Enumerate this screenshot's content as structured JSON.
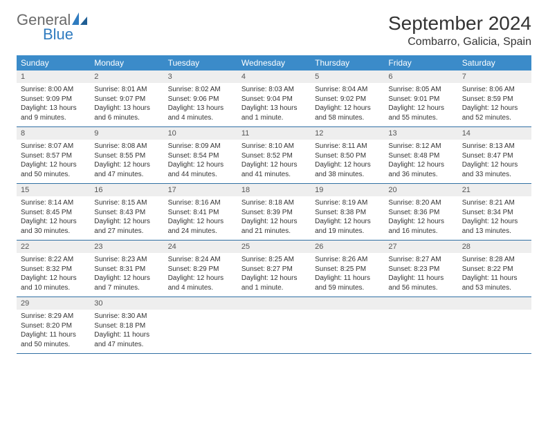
{
  "logo": {
    "general": "General",
    "blue": "Blue"
  },
  "header": {
    "month_title": "September 2024",
    "location": "Combarro, Galicia, Spain"
  },
  "colors": {
    "header_bg": "#3b8bc9",
    "header_text": "#ffffff",
    "daynum_bg": "#eeeeee",
    "row_border": "#2f6fa3",
    "logo_gray": "#6a6a6a",
    "logo_blue": "#2f7bbf",
    "text": "#333333",
    "background": "#ffffff"
  },
  "days_of_week": [
    "Sunday",
    "Monday",
    "Tuesday",
    "Wednesday",
    "Thursday",
    "Friday",
    "Saturday"
  ],
  "weeks": [
    [
      {
        "n": "1",
        "sunrise": "Sunrise: 8:00 AM",
        "sunset": "Sunset: 9:09 PM",
        "daylight": "Daylight: 13 hours and 9 minutes."
      },
      {
        "n": "2",
        "sunrise": "Sunrise: 8:01 AM",
        "sunset": "Sunset: 9:07 PM",
        "daylight": "Daylight: 13 hours and 6 minutes."
      },
      {
        "n": "3",
        "sunrise": "Sunrise: 8:02 AM",
        "sunset": "Sunset: 9:06 PM",
        "daylight": "Daylight: 13 hours and 4 minutes."
      },
      {
        "n": "4",
        "sunrise": "Sunrise: 8:03 AM",
        "sunset": "Sunset: 9:04 PM",
        "daylight": "Daylight: 13 hours and 1 minute."
      },
      {
        "n": "5",
        "sunrise": "Sunrise: 8:04 AM",
        "sunset": "Sunset: 9:02 PM",
        "daylight": "Daylight: 12 hours and 58 minutes."
      },
      {
        "n": "6",
        "sunrise": "Sunrise: 8:05 AM",
        "sunset": "Sunset: 9:01 PM",
        "daylight": "Daylight: 12 hours and 55 minutes."
      },
      {
        "n": "7",
        "sunrise": "Sunrise: 8:06 AM",
        "sunset": "Sunset: 8:59 PM",
        "daylight": "Daylight: 12 hours and 52 minutes."
      }
    ],
    [
      {
        "n": "8",
        "sunrise": "Sunrise: 8:07 AM",
        "sunset": "Sunset: 8:57 PM",
        "daylight": "Daylight: 12 hours and 50 minutes."
      },
      {
        "n": "9",
        "sunrise": "Sunrise: 8:08 AM",
        "sunset": "Sunset: 8:55 PM",
        "daylight": "Daylight: 12 hours and 47 minutes."
      },
      {
        "n": "10",
        "sunrise": "Sunrise: 8:09 AM",
        "sunset": "Sunset: 8:54 PM",
        "daylight": "Daylight: 12 hours and 44 minutes."
      },
      {
        "n": "11",
        "sunrise": "Sunrise: 8:10 AM",
        "sunset": "Sunset: 8:52 PM",
        "daylight": "Daylight: 12 hours and 41 minutes."
      },
      {
        "n": "12",
        "sunrise": "Sunrise: 8:11 AM",
        "sunset": "Sunset: 8:50 PM",
        "daylight": "Daylight: 12 hours and 38 minutes."
      },
      {
        "n": "13",
        "sunrise": "Sunrise: 8:12 AM",
        "sunset": "Sunset: 8:48 PM",
        "daylight": "Daylight: 12 hours and 36 minutes."
      },
      {
        "n": "14",
        "sunrise": "Sunrise: 8:13 AM",
        "sunset": "Sunset: 8:47 PM",
        "daylight": "Daylight: 12 hours and 33 minutes."
      }
    ],
    [
      {
        "n": "15",
        "sunrise": "Sunrise: 8:14 AM",
        "sunset": "Sunset: 8:45 PM",
        "daylight": "Daylight: 12 hours and 30 minutes."
      },
      {
        "n": "16",
        "sunrise": "Sunrise: 8:15 AM",
        "sunset": "Sunset: 8:43 PM",
        "daylight": "Daylight: 12 hours and 27 minutes."
      },
      {
        "n": "17",
        "sunrise": "Sunrise: 8:16 AM",
        "sunset": "Sunset: 8:41 PM",
        "daylight": "Daylight: 12 hours and 24 minutes."
      },
      {
        "n": "18",
        "sunrise": "Sunrise: 8:18 AM",
        "sunset": "Sunset: 8:39 PM",
        "daylight": "Daylight: 12 hours and 21 minutes."
      },
      {
        "n": "19",
        "sunrise": "Sunrise: 8:19 AM",
        "sunset": "Sunset: 8:38 PM",
        "daylight": "Daylight: 12 hours and 19 minutes."
      },
      {
        "n": "20",
        "sunrise": "Sunrise: 8:20 AM",
        "sunset": "Sunset: 8:36 PM",
        "daylight": "Daylight: 12 hours and 16 minutes."
      },
      {
        "n": "21",
        "sunrise": "Sunrise: 8:21 AM",
        "sunset": "Sunset: 8:34 PM",
        "daylight": "Daylight: 12 hours and 13 minutes."
      }
    ],
    [
      {
        "n": "22",
        "sunrise": "Sunrise: 8:22 AM",
        "sunset": "Sunset: 8:32 PM",
        "daylight": "Daylight: 12 hours and 10 minutes."
      },
      {
        "n": "23",
        "sunrise": "Sunrise: 8:23 AM",
        "sunset": "Sunset: 8:31 PM",
        "daylight": "Daylight: 12 hours and 7 minutes."
      },
      {
        "n": "24",
        "sunrise": "Sunrise: 8:24 AM",
        "sunset": "Sunset: 8:29 PM",
        "daylight": "Daylight: 12 hours and 4 minutes."
      },
      {
        "n": "25",
        "sunrise": "Sunrise: 8:25 AM",
        "sunset": "Sunset: 8:27 PM",
        "daylight": "Daylight: 12 hours and 1 minute."
      },
      {
        "n": "26",
        "sunrise": "Sunrise: 8:26 AM",
        "sunset": "Sunset: 8:25 PM",
        "daylight": "Daylight: 11 hours and 59 minutes."
      },
      {
        "n": "27",
        "sunrise": "Sunrise: 8:27 AM",
        "sunset": "Sunset: 8:23 PM",
        "daylight": "Daylight: 11 hours and 56 minutes."
      },
      {
        "n": "28",
        "sunrise": "Sunrise: 8:28 AM",
        "sunset": "Sunset: 8:22 PM",
        "daylight": "Daylight: 11 hours and 53 minutes."
      }
    ],
    [
      {
        "n": "29",
        "sunrise": "Sunrise: 8:29 AM",
        "sunset": "Sunset: 8:20 PM",
        "daylight": "Daylight: 11 hours and 50 minutes."
      },
      {
        "n": "30",
        "sunrise": "Sunrise: 8:30 AM",
        "sunset": "Sunset: 8:18 PM",
        "daylight": "Daylight: 11 hours and 47 minutes."
      },
      null,
      null,
      null,
      null,
      null
    ]
  ]
}
